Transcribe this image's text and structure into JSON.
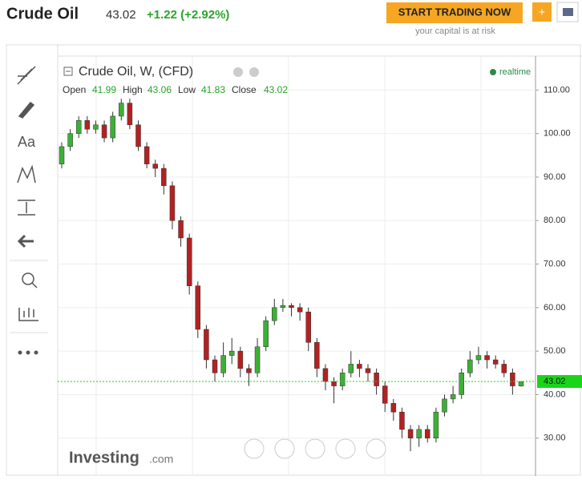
{
  "header": {
    "instrument": "Crude Oil",
    "change": "+1.22 (+2.92%)",
    "button": "START TRADING NOW",
    "risk_note": "your capital is at risk"
  },
  "toolbar": {
    "text_tool": "Aa"
  },
  "branding": {
    "name": "Investing",
    "suffix": ".com"
  },
  "chart_data": {
    "type": "candlestick",
    "title": "Crude Oil, W, (CFD)",
    "status": "realtime",
    "ohlc_labels": {
      "open": "Open",
      "high": "High",
      "low": "Low",
      "close": "Close"
    },
    "up_color": "#3cb035",
    "down_color": "#b22222",
    "last_color": "#19d419",
    "open": [
      93,
      97,
      100,
      103,
      101,
      102,
      99,
      104,
      107,
      102,
      97,
      93,
      92,
      88,
      80,
      76,
      65,
      55,
      48,
      45,
      49,
      50,
      46,
      45,
      51,
      57,
      60,
      60.5,
      60,
      59,
      52,
      46,
      43,
      42,
      45,
      47,
      46,
      45,
      42,
      38,
      36,
      32,
      30,
      32,
      30,
      36,
      39,
      40,
      45,
      48,
      49,
      48,
      47,
      45,
      41.99
    ],
    "high": [
      98,
      101,
      104,
      104,
      103,
      103,
      105,
      108,
      108,
      103,
      98,
      94,
      93,
      89,
      81,
      77,
      66,
      56,
      49,
      52,
      53,
      51,
      47,
      53,
      58,
      62,
      62,
      61,
      61,
      60,
      53,
      47,
      44,
      46,
      50,
      48,
      47,
      46,
      43,
      39,
      37,
      33,
      33,
      33,
      37,
      40,
      42,
      46,
      50,
      51,
      50,
      49,
      48,
      46,
      43.06
    ],
    "low": [
      92,
      96,
      99,
      100,
      100,
      98,
      98,
      103,
      101,
      96,
      92,
      90,
      86,
      78,
      74,
      63,
      53,
      46,
      43,
      44,
      47,
      44,
      42,
      44,
      50,
      56,
      59,
      58,
      57,
      50,
      44,
      41,
      38,
      41,
      44,
      44,
      43,
      40,
      36,
      34,
      30,
      27,
      28,
      29,
      29,
      35,
      38,
      39,
      44,
      47,
      46,
      46,
      44,
      40,
      41.83
    ],
    "close": [
      97,
      100,
      103,
      101,
      102,
      99,
      104,
      107,
      102,
      97,
      93,
      92,
      88,
      80,
      76,
      65,
      55,
      48,
      45,
      49,
      50,
      46,
      45,
      51,
      57,
      60,
      60.5,
      60,
      59,
      52,
      46,
      43,
      42,
      45,
      47,
      46,
      45,
      42,
      38,
      36,
      32,
      30,
      32,
      30,
      36,
      39,
      40,
      45,
      48,
      49,
      48,
      47,
      45,
      41.99,
      43.02
    ],
    "ylim": [
      21.3,
      117.8
    ],
    "yticks": [
      {
        "value": 30,
        "label": "30.00"
      },
      {
        "value": 40,
        "label": "40.00"
      },
      {
        "value": 50,
        "label": "50.00"
      },
      {
        "value": 60,
        "label": "60.00"
      },
      {
        "value": 70,
        "label": "70.00"
      },
      {
        "value": 80,
        "label": "80.00"
      },
      {
        "value": 90,
        "label": "90.00"
      },
      {
        "value": 100,
        "label": "100.00"
      },
      {
        "value": 110,
        "label": "110.00"
      }
    ],
    "grid": true
  }
}
